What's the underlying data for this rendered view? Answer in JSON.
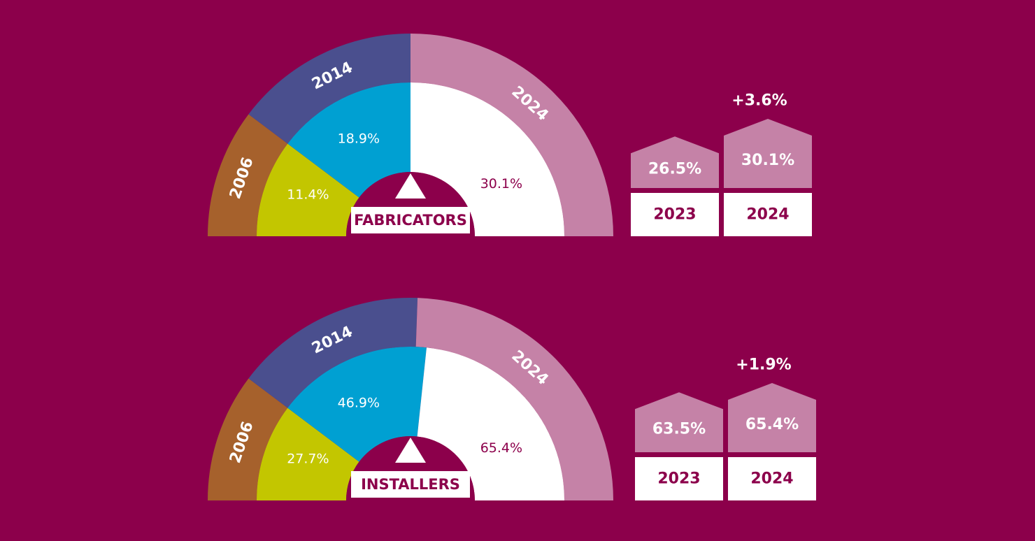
{
  "colors": {
    "background": "#8c004b",
    "band2006": "#a6612c",
    "band2014": "#4a4f8e",
    "band2024": "#c582a7",
    "inner2006": "#c3c600",
    "inner2014": "#00a0d2",
    "inner2024": "#ffffff",
    "house": "#c582a7",
    "yearBox": "#ffffff",
    "textDark": "#8c004b",
    "textLight": "#ffffff"
  },
  "chart_data": [
    {
      "type": "pie",
      "title": "FABRICATORS",
      "icon": "triangle-up-icon",
      "years": [
        "2006",
        "2014",
        "2024"
      ],
      "values": [
        11.4,
        18.9,
        30.1
      ],
      "value_labels": [
        "11.4%",
        "18.9%",
        "30.1%"
      ],
      "comparison": {
        "type": "bar",
        "categories": [
          "2023",
          "2024"
        ],
        "values": [
          26.5,
          30.1
        ],
        "value_labels": [
          "26.5%",
          "30.1%"
        ],
        "change_label": "+3.6%"
      }
    },
    {
      "type": "pie",
      "title": "INSTALLERS",
      "icon": "triangle-up-icon",
      "years": [
        "2006",
        "2014",
        "2024"
      ],
      "values": [
        27.7,
        46.9,
        65.4
      ],
      "value_labels": [
        "27.7%",
        "46.9%",
        "65.4%"
      ],
      "comparison": {
        "type": "bar",
        "categories": [
          "2023",
          "2024"
        ],
        "values": [
          63.5,
          65.4
        ],
        "value_labels": [
          "63.5%",
          "65.4%"
        ],
        "change_label": "+1.9%"
      }
    }
  ]
}
